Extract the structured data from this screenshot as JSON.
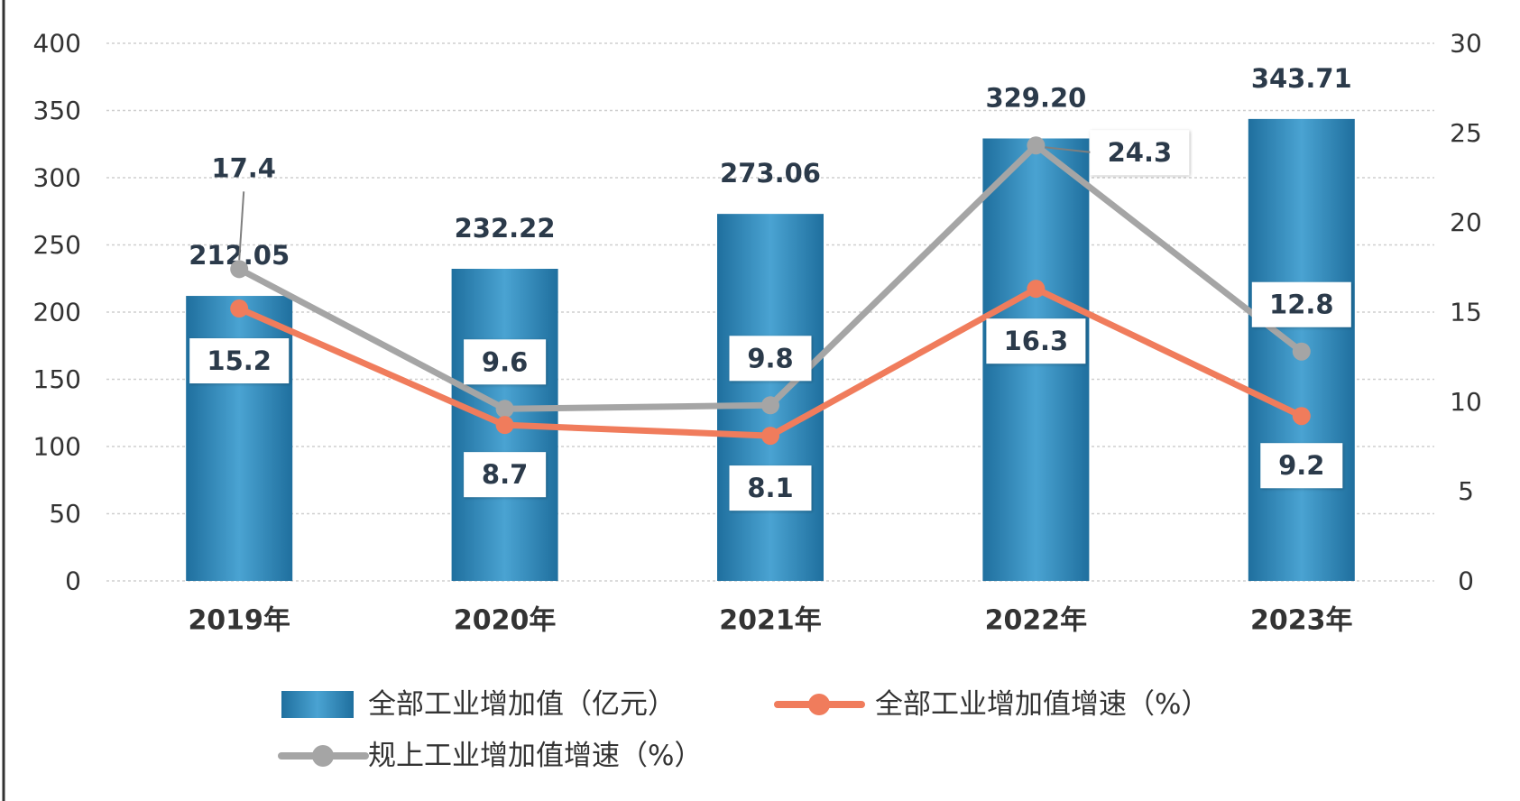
{
  "chart_data": {
    "type": "bar",
    "title": "",
    "categories": [
      "2019年",
      "2020年",
      "2021年",
      "2022年",
      "2023年"
    ],
    "series": [
      {
        "name": "全部工业增加值（亿元）",
        "kind": "bar",
        "axis": "left",
        "color": "#2f87b9",
        "values": [
          212.05,
          232.22,
          273.06,
          329.2,
          343.71
        ],
        "labels": [
          "212.05",
          "232.22",
          "273.06",
          "329.20",
          "343.71"
        ]
      },
      {
        "name": "全部工业增加值增速（%）",
        "kind": "line",
        "axis": "right",
        "color": "#f07c5c",
        "values": [
          15.2,
          8.7,
          8.1,
          16.3,
          9.2
        ],
        "labels": [
          "15.2",
          "8.7",
          "8.1",
          "16.3",
          "9.2"
        ]
      },
      {
        "name": "规上工业增加值增速（%）",
        "kind": "line",
        "axis": "right",
        "color": "#a5a5a5",
        "values": [
          17.4,
          9.6,
          9.8,
          24.3,
          12.8
        ],
        "labels": [
          "17.4",
          "9.6",
          "9.8",
          "24.3",
          "12.8"
        ]
      }
    ],
    "y_left": {
      "min": 0,
      "max": 400,
      "step": 50,
      "ticks": [
        "0",
        "50",
        "100",
        "150",
        "200",
        "250",
        "300",
        "350",
        "400"
      ]
    },
    "y_right": {
      "min": 0,
      "max": 30,
      "step": 5,
      "ticks": [
        "0",
        "5",
        "10",
        "15",
        "20",
        "25",
        "30"
      ]
    },
    "grid": true,
    "legend_position": "bottom"
  }
}
